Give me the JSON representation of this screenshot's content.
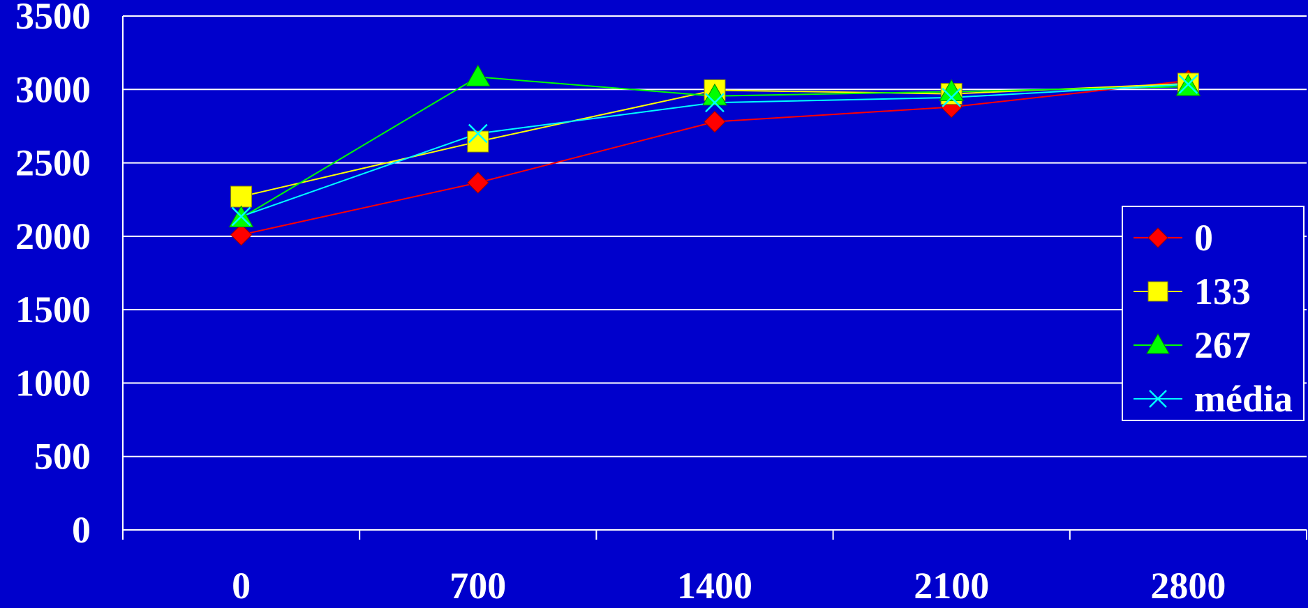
{
  "chart_data": {
    "type": "line",
    "title": "",
    "xlabel": "",
    "ylabel": "",
    "categories": [
      "0",
      "700",
      "1400",
      "2100",
      "2800"
    ],
    "ylim": [
      0,
      3500
    ],
    "yticks": [
      "0",
      "500",
      "1000",
      "1500",
      "2000",
      "2500",
      "3000",
      "3500"
    ],
    "grid": "horizontal",
    "legend_position": "right",
    "background_color": "#0000cc",
    "series": [
      {
        "name": "0",
        "color": "#ff0000",
        "marker": "diamond",
        "values": [
          2010,
          2365,
          2780,
          2880,
          3060
        ]
      },
      {
        "name": "133",
        "color": "#ffff00",
        "marker": "square",
        "values": [
          2270,
          2645,
          2995,
          2970,
          3040
        ]
      },
      {
        "name": "267",
        "color": "#00ff00",
        "marker": "triangle",
        "values": [
          2125,
          3085,
          2955,
          2985,
          3020
        ]
      },
      {
        "name": "média",
        "color": "#00ffff",
        "marker": "x",
        "values": [
          2135,
          2700,
          2910,
          2945,
          3035
        ]
      }
    ]
  }
}
